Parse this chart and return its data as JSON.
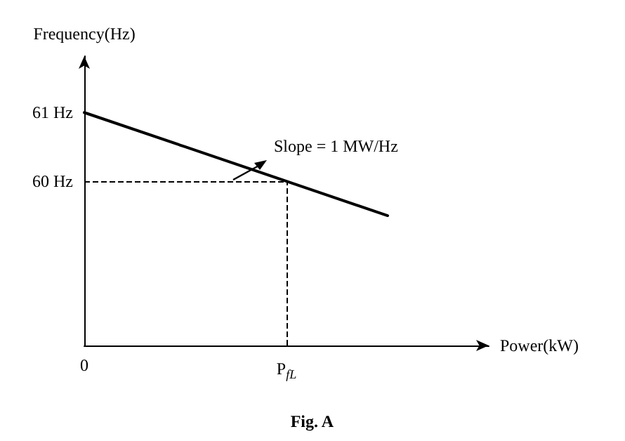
{
  "chart_data": {
    "type": "line",
    "ylabel": "Frequency(Hz)",
    "xlabel": "Power(kW)",
    "categories": [
      "0",
      null,
      "P$_{fL}$",
      null,
      null
    ],
    "series": [
      {
        "color": "#000000",
        "values": [
          61,
          60.5,
          60,
          59.5,
          null
        ]
      }
    ],
    "ylim": [
      57.61,
      61.82
    ],
    "yticks": [
      {
        "value": 60,
        "label": "60 Hz"
      },
      {
        "value": 61,
        "label": "61 Hz"
      }
    ],
    "ref_lines": [
      {
        "axis": "y",
        "value": 60,
        "line_style": "dashed",
        "color": "#000000"
      },
      {
        "axis": "x",
        "value": "P$_{fL}$",
        "line_style": "dashed",
        "color": "#000000"
      }
    ],
    "annotations": [
      "Slope = 1 MW/Hz",
      "Fig. A"
    ],
    "grid": false,
    "marker": "none",
    "line_style": "solid"
  }
}
